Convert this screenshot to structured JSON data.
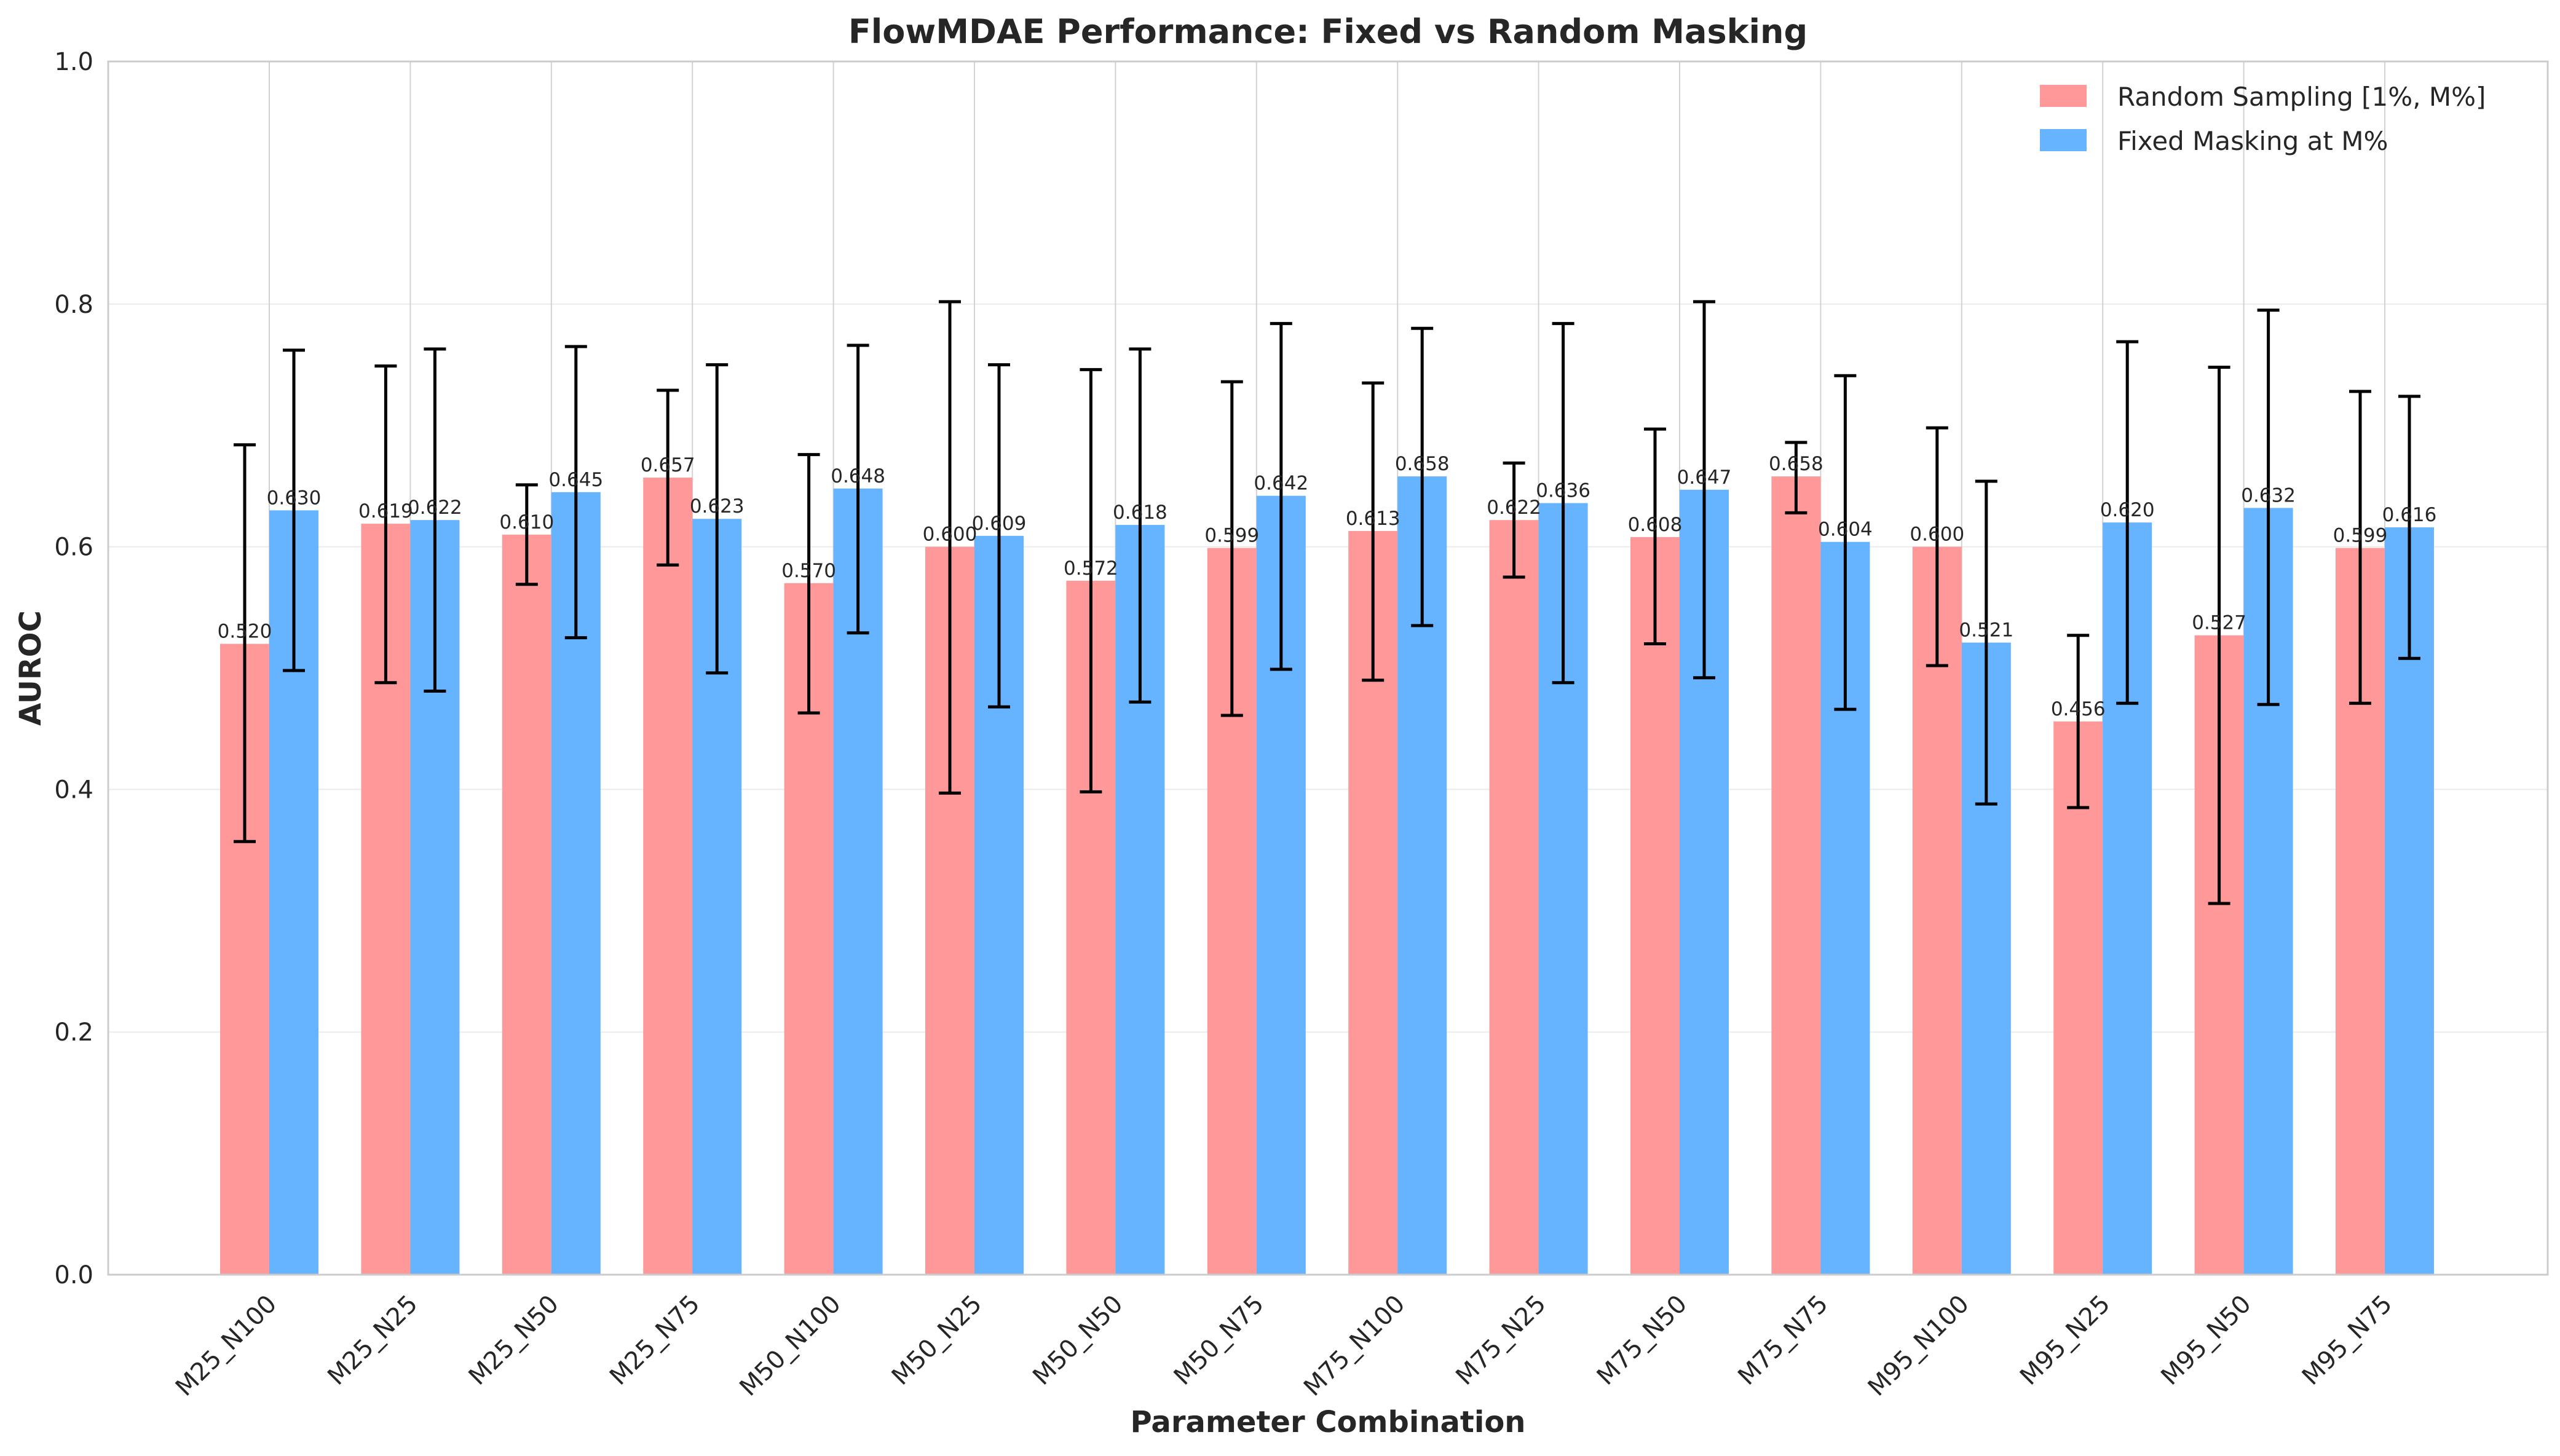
{
  "chart_data": {
    "type": "bar",
    "title": "FlowMDAE Performance: Fixed vs Random Masking",
    "xlabel": "Parameter Combination",
    "ylabel": "AUROC",
    "ylim": [
      0,
      1.0
    ],
    "yticks": [
      "0.0",
      "0.2",
      "0.4",
      "0.6",
      "0.8",
      "1.0"
    ],
    "grid": true,
    "legend_position": "top-right",
    "categories": [
      "M25_N100",
      "M25_N25",
      "M25_N50",
      "M25_N75",
      "M50_N100",
      "M50_N25",
      "M50_N50",
      "M50_N75",
      "M75_N100",
      "M75_N25",
      "M75_N50",
      "M75_N75",
      "M95_N100",
      "M95_N25",
      "M95_N50",
      "M95_N75"
    ],
    "series": [
      {
        "name": "Random Sampling [1%, M%]",
        "color": "#ff9999",
        "values": [
          0.52,
          0.619,
          0.61,
          0.657,
          0.57,
          0.6,
          0.572,
          0.599,
          0.613,
          0.622,
          0.608,
          0.658,
          0.6,
          0.456,
          0.527,
          0.599
        ],
        "labels": [
          "0.520",
          "0.619",
          "0.610",
          "0.657",
          "0.570",
          "0.600",
          "0.572",
          "0.599",
          "0.613",
          "0.622",
          "0.608",
          "0.658",
          "0.600",
          "0.456",
          "0.527",
          "0.599"
        ],
        "err_low": [
          0.357,
          0.488,
          0.569,
          0.585,
          0.463,
          0.397,
          0.398,
          0.461,
          0.49,
          0.575,
          0.52,
          0.628,
          0.502,
          0.385,
          0.306,
          0.471
        ],
        "err_high": [
          0.684,
          0.749,
          0.651,
          0.729,
          0.676,
          0.802,
          0.746,
          0.736,
          0.735,
          0.669,
          0.697,
          0.686,
          0.698,
          0.527,
          0.748,
          0.728
        ]
      },
      {
        "name": "Fixed Masking at M%",
        "color": "#66b3ff",
        "values": [
          0.63,
          0.622,
          0.645,
          0.623,
          0.648,
          0.609,
          0.618,
          0.642,
          0.658,
          0.636,
          0.647,
          0.604,
          0.521,
          0.62,
          0.632,
          0.616
        ],
        "labels": [
          "0.630",
          "0.622",
          "0.645",
          "0.623",
          "0.648",
          "0.609",
          "0.618",
          "0.642",
          "0.658",
          "0.636",
          "0.647",
          "0.604",
          "0.521",
          "0.620",
          "0.632",
          "0.616"
        ],
        "err_low": [
          0.498,
          0.481,
          0.525,
          0.496,
          0.529,
          0.468,
          0.472,
          0.499,
          0.535,
          0.488,
          0.492,
          0.466,
          0.388,
          0.471,
          0.47,
          0.508
        ],
        "err_high": [
          0.762,
          0.763,
          0.765,
          0.75,
          0.766,
          0.75,
          0.763,
          0.784,
          0.78,
          0.784,
          0.802,
          0.741,
          0.654,
          0.769,
          0.795,
          0.724
        ]
      }
    ]
  }
}
